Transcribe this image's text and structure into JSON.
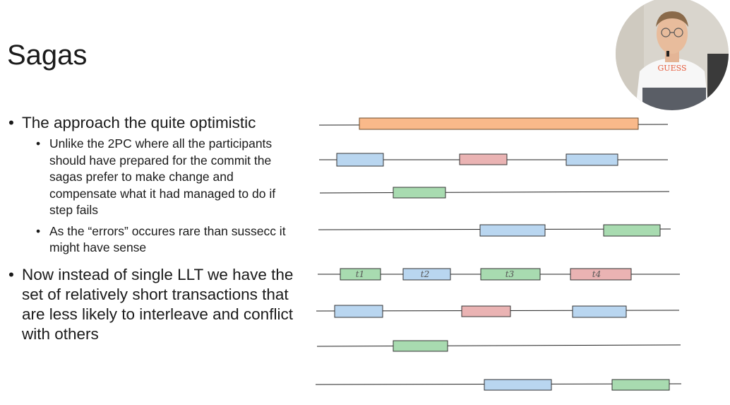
{
  "slide": {
    "title": "Sagas",
    "bullets": [
      {
        "text": "The approach the quite optimistic",
        "sub": [
          "Unlike the 2PC where all the participants should have prepared for the commit the sagas prefer to make change and compensate what it had managed to do if step fails",
          "As the “errors” occures rare than sussecc it might have sense"
        ]
      },
      {
        "text": "Now instead of single LLT we have the set of relatively short transactions that are less likely to interleave and conflict with others",
        "sub": []
      }
    ]
  },
  "diagram": {
    "colors": {
      "orange": "#f9b98a",
      "blue": "#b9d6f0",
      "red": "#eab3b3",
      "green": "#a8dbb0"
    },
    "labels": [
      "t1",
      "t2",
      "t3",
      "t4"
    ]
  },
  "webcam": {
    "shirt_text": "GUESS"
  }
}
